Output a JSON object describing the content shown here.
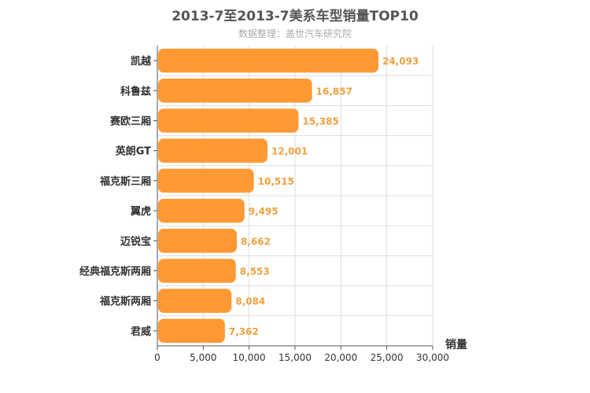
{
  "chart_data": {
    "type": "bar",
    "orientation": "horizontal",
    "title": "2013-7至2013-7美系车型销量TOP10",
    "subtitle": "数据整理：盖世汽车研究院",
    "categories": [
      "凯越",
      "科鲁兹",
      "赛欧三厢",
      "英朗GT",
      "福克斯三厢",
      "翼虎",
      "迈锐宝",
      "经典福克斯两厢",
      "福克斯两厢",
      "君威"
    ],
    "values": [
      24093,
      16857,
      15385,
      12001,
      10515,
      9495,
      8662,
      8553,
      8084,
      7362
    ],
    "value_labels": [
      "24,093",
      "16,857",
      "15,385",
      "12,001",
      "10,515",
      "9,495",
      "8,662",
      "8,553",
      "8,084",
      "7,362"
    ],
    "xlabel": "销量",
    "ylabel": "",
    "xlim": [
      0,
      30000
    ],
    "ticks": [
      0,
      5000,
      10000,
      15000,
      20000,
      25000,
      30000
    ],
    "tick_labels": [
      "0",
      "5,000",
      "10,000",
      "15,000",
      "20,000",
      "25,000",
      "30,000"
    ],
    "grid": true,
    "bar_color": "#ff9933",
    "label_color": "#f0a040"
  }
}
